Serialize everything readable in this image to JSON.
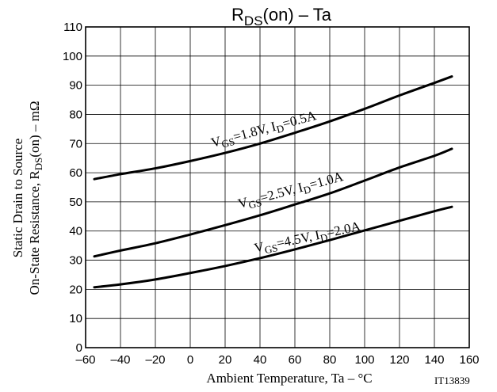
{
  "chart_data": {
    "type": "line",
    "title": {
      "main": "R",
      "sub": "DS",
      "rest": "(on)  –  Ta"
    },
    "xlabel": "Ambient Temperature, Ta  –  °C",
    "ylabel": {
      "line1": "Static Drain to Source",
      "line2_pre": "On-State Resistance, R",
      "line2_sub": "DS",
      "line2_post": "(on)  –  mΩ"
    },
    "figure_id": "IT13839",
    "xlim": [
      -60,
      160
    ],
    "ylim": [
      0,
      110
    ],
    "xticks": [
      -60,
      -40,
      -20,
      0,
      20,
      40,
      60,
      80,
      100,
      120,
      140,
      160
    ],
    "yticks": [
      0,
      10,
      20,
      30,
      40,
      50,
      60,
      70,
      80,
      90,
      100,
      110
    ],
    "grid": true,
    "series": [
      {
        "label": {
          "a": "V",
          "b": "GS",
          "c": "=1.8V, I",
          "d": "D",
          "e": "=0.5A"
        },
        "x": [
          -55,
          -40,
          -20,
          0,
          20,
          40,
          60,
          80,
          100,
          120,
          140,
          150
        ],
        "y": [
          57.8,
          59.5,
          61.5,
          64,
          66.8,
          70,
          73.7,
          77.6,
          81.9,
          86.5,
          90.8,
          93
        ]
      },
      {
        "label": {
          "a": "V",
          "b": "GS",
          "c": "=2.5V, I",
          "d": "D",
          "e": "=1.0A"
        },
        "x": [
          -55,
          -40,
          -20,
          0,
          20,
          40,
          60,
          80,
          100,
          120,
          140,
          150
        ],
        "y": [
          31.3,
          33.3,
          35.8,
          38.8,
          42,
          45.4,
          49.1,
          52.9,
          57.3,
          61.8,
          65.8,
          68.2
        ]
      },
      {
        "label": {
          "a": "V",
          "b": "GS",
          "c": "=4.5V, I",
          "d": "D",
          "e": "=2.0A"
        },
        "x": [
          -55,
          -40,
          -20,
          0,
          20,
          40,
          60,
          80,
          100,
          120,
          140,
          150
        ],
        "y": [
          20.7,
          21.7,
          23.4,
          25.6,
          28,
          30.7,
          33.7,
          36.9,
          40.2,
          43.5,
          46.8,
          48.3
        ]
      }
    ]
  }
}
